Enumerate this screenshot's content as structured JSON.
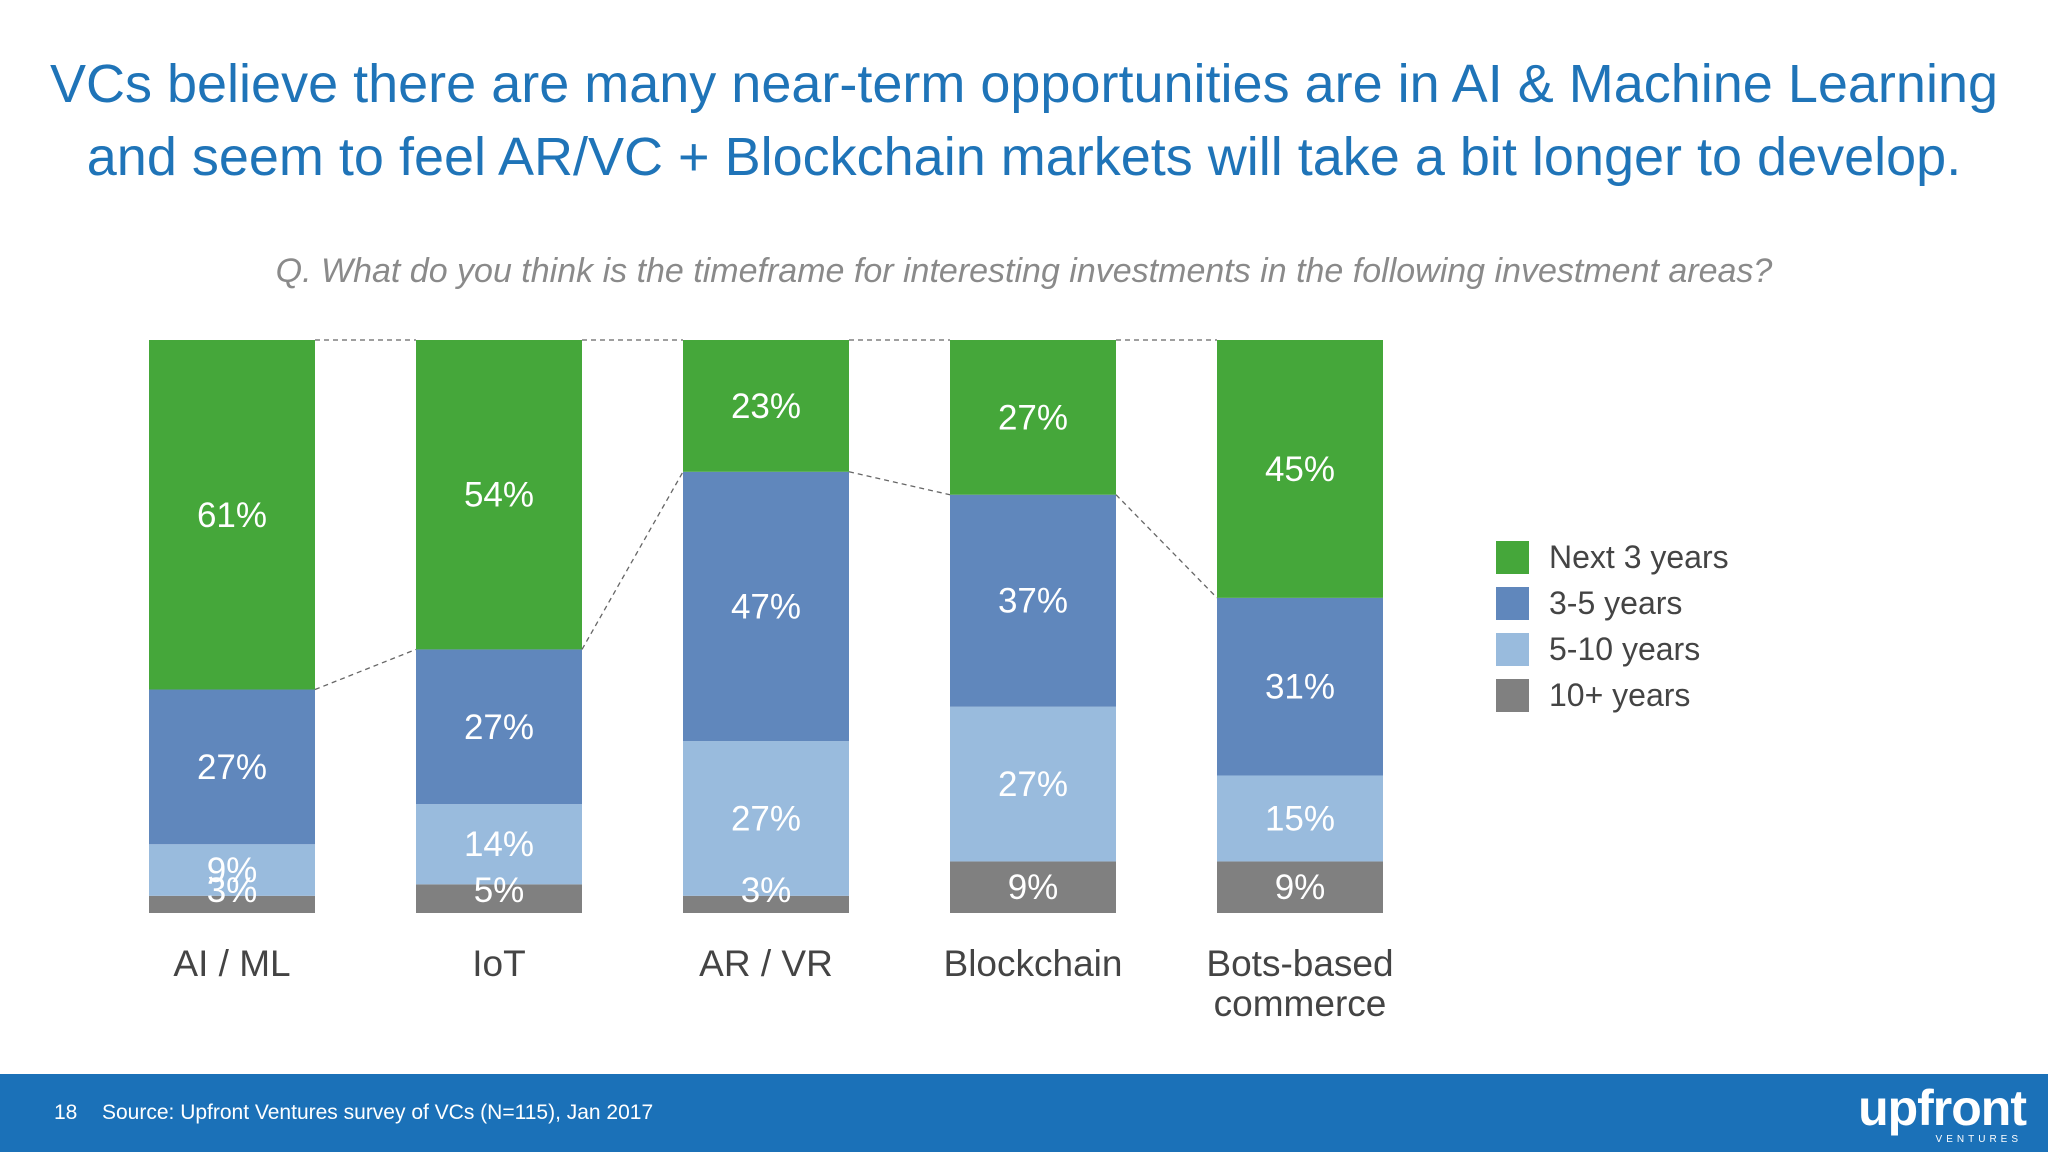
{
  "title": {
    "line1": "VCs believe there are many near-term opportunities are in AI & Machine Learning",
    "line2": "and seem to feel AR/VC + Blockchain markets will take a bit longer to develop."
  },
  "question": "Q. What do you think is the timeframe for interesting investments in the following investment areas?",
  "chart_data": {
    "type": "bar",
    "stacked": true,
    "normalized_percent": true,
    "categories": [
      [
        "AI / ML"
      ],
      [
        "IoT"
      ],
      [
        "AR / VR"
      ],
      [
        "Blockchain"
      ],
      [
        "Bots-based",
        "commerce"
      ]
    ],
    "series": [
      {
        "name": "10+ years",
        "color": "#808080",
        "values": [
          3,
          5,
          3,
          9,
          9
        ],
        "labels": [
          "3%",
          "5%",
          "3%",
          "9%",
          "9%"
        ]
      },
      {
        "name": "5-10 years",
        "color": "#99bbdd",
        "values": [
          9,
          14,
          27,
          27,
          15
        ],
        "labels": [
          "9%",
          "14%",
          "27%",
          "27%",
          "15%"
        ]
      },
      {
        "name": "3-5 years",
        "color": "#6087bc",
        "values": [
          27,
          27,
          47,
          37,
          31
        ],
        "labels": [
          "27%",
          "27%",
          "47%",
          "37%",
          "31%"
        ]
      },
      {
        "name": "Next 3 years",
        "color": "#45a73a",
        "values": [
          61,
          54,
          23,
          27,
          45
        ],
        "labels": [
          "61%",
          "54%",
          "23%",
          "27%",
          "45%"
        ]
      }
    ],
    "legend_position": "right",
    "grid": false,
    "connector_lines": true
  },
  "legend": {
    "items": [
      {
        "label": "Next 3 years",
        "color": "#45a73a"
      },
      {
        "label": "3-5 years",
        "color": "#6087bc"
      },
      {
        "label": "5-10 years",
        "color": "#99bbdd"
      },
      {
        "label": "10+ years",
        "color": "#808080"
      }
    ]
  },
  "footer": {
    "page_number": "18",
    "source": "Source: Upfront Ventures survey of VCs (N=115), Jan 2017",
    "logo_text": "upfront",
    "logo_sub": "VENTURES"
  }
}
